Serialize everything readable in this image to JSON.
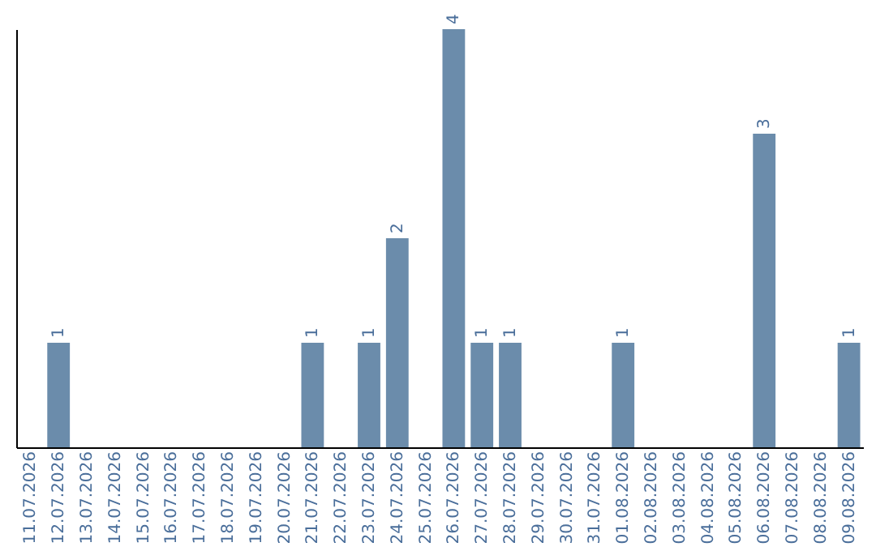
{
  "chart_data": {
    "type": "bar",
    "categories": [
      "11.07.2026",
      "12.07.2026",
      "13.07.2026",
      "14.07.2026",
      "15.07.2026",
      "16.07.2026",
      "17.07.2026",
      "18.07.2026",
      "19.07.2026",
      "20.07.2026",
      "21.07.2026",
      "22.07.2026",
      "23.07.2026",
      "24.07.2026",
      "25.07.2026",
      "26.07.2026",
      "27.07.2026",
      "28.07.2026",
      "29.07.2026",
      "30.07.2026",
      "31.07.2026",
      "01.08.2026",
      "02.08.2026",
      "03.08.2026",
      "04.08.2026",
      "05.08.2026",
      "06.08.2026",
      "07.08.2026",
      "08.08.2026",
      "09.08.2026"
    ],
    "values": [
      null,
      1,
      null,
      null,
      null,
      null,
      null,
      null,
      null,
      null,
      1,
      null,
      1,
      2,
      null,
      4,
      1,
      1,
      null,
      null,
      null,
      1,
      null,
      null,
      null,
      null,
      3,
      null,
      null,
      1
    ],
    "color": "#6b8cab",
    "ylim": [
      0,
      4
    ],
    "data_labels": true,
    "tick_labels": "x"
  }
}
